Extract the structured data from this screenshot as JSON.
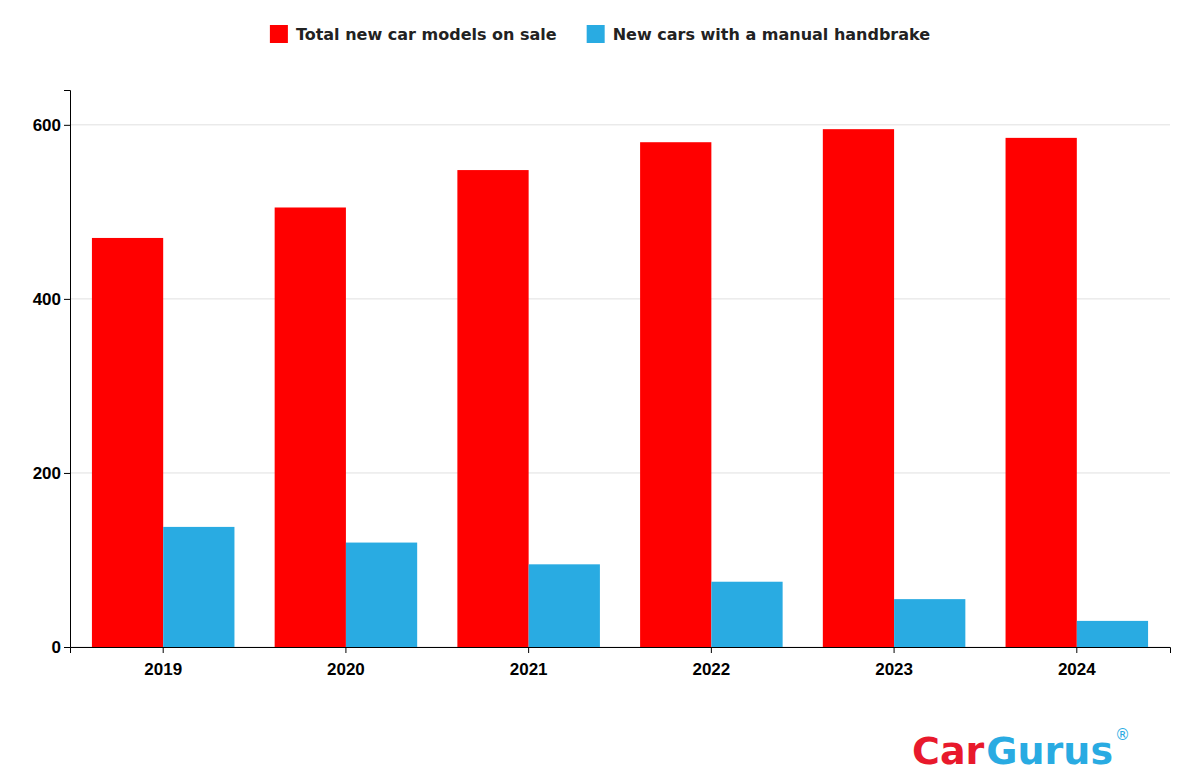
{
  "chart_data": {
    "type": "bar",
    "categories": [
      "2019",
      "2020",
      "2021",
      "2022",
      "2023",
      "2024"
    ],
    "series": [
      {
        "name": "Total new car models on sale",
        "color": "#FF0000",
        "values": [
          470,
          505,
          548,
          580,
          595,
          585
        ]
      },
      {
        "name": "New cars with a manual handbrake",
        "color": "#29ABE2",
        "values": [
          138,
          120,
          95,
          75,
          55,
          30
        ]
      }
    ],
    "ylim": [
      0,
      640
    ],
    "yticks": [
      0,
      200,
      400,
      600
    ],
    "grid": true,
    "legend": "top",
    "annotations": [
      {
        "text": "Car",
        "color": "#E8192C"
      },
      {
        "text": "Gurus",
        "color": "#29ABE2"
      },
      {
        "text": "®",
        "color": "#29ABE2"
      }
    ]
  }
}
